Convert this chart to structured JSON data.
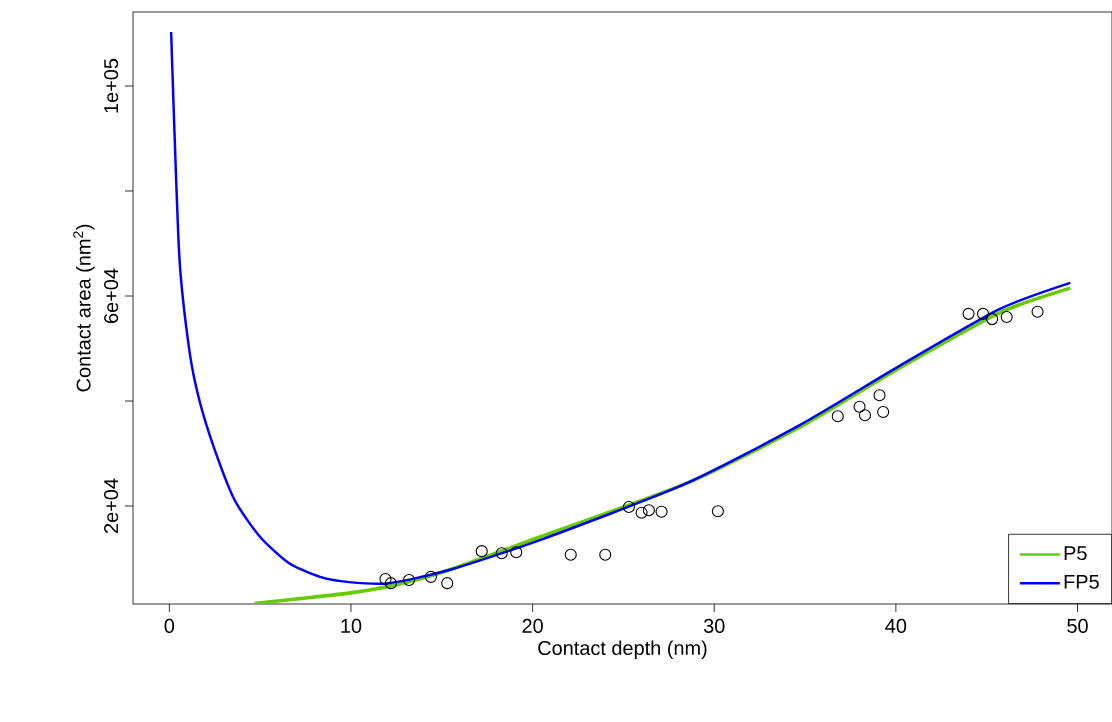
{
  "chart_data": {
    "type": "scatter",
    "xlabel": "Contact depth (nm)",
    "ylabel": "Contact area (nm$^{2}$)",
    "xlim": [
      -2,
      51.9
    ],
    "ylim": [
      1333,
      114100
    ],
    "xticks": [
      0,
      10,
      20,
      30,
      40,
      50
    ],
    "yticks": [
      {
        "value": 20000,
        "label": "2e+04"
      },
      {
        "value": 40000,
        "label": null
      },
      {
        "value": 60000,
        "label": "6e+04"
      },
      {
        "value": 80000,
        "label": null
      },
      {
        "value": 100000,
        "label": "1e+05"
      }
    ],
    "grid": false,
    "legend": "bottom right",
    "series": [
      {
        "marker": "circle",
        "color": "#000000",
        "x": [
          11.9,
          12.2,
          13.2,
          14.4,
          15.3,
          17.2,
          18.3,
          19.1,
          22.1,
          24.0,
          25.3,
          26.0,
          26.4,
          27.1,
          30.2,
          36.8,
          38.0,
          38.3,
          39.1,
          39.3,
          44.0,
          44.8,
          45.3,
          46.1,
          47.8
        ],
        "values": [
          6100,
          5300,
          5900,
          6500,
          5300,
          11400,
          11000,
          11200,
          10700,
          10700,
          19800,
          18700,
          19200,
          18900,
          19000,
          37100,
          38900,
          37300,
          41100,
          37900,
          56600,
          56600,
          55600,
          56000,
          57000
        ]
      },
      {
        "type": "line",
        "name": "P5",
        "color": "#66cc00",
        "x": [
          4.7,
          7.0,
          9.9,
          12.5,
          15.4,
          20.4,
          28.4,
          34.7,
          40.2,
          45.7,
          49.6
        ],
        "values": [
          1400,
          2300,
          3400,
          5000,
          7800,
          14100,
          24200,
          35000,
          46300,
          56800,
          61500
        ]
      },
      {
        "type": "line",
        "name": "FP5",
        "color": "#0000ff",
        "x": [
          0.1,
          0.55,
          1.1,
          1.65,
          2.5,
          3.6,
          5.0,
          6.6,
          8.3,
          9.9,
          12.1,
          15.4,
          20.4,
          28.4,
          34.7,
          40.2,
          45.7,
          49.6
        ],
        "values": [
          110300,
          67600,
          49700,
          40200,
          30700,
          21100,
          14100,
          9100,
          6500,
          5500,
          5300,
          7800,
          13500,
          24200,
          35400,
          46700,
          57500,
          62500
        ]
      }
    ]
  }
}
